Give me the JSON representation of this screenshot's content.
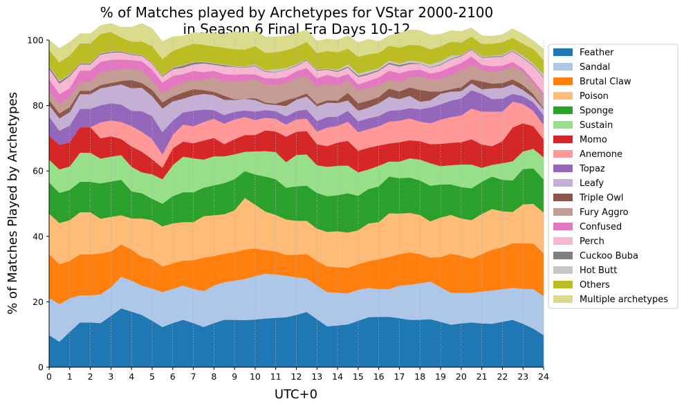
{
  "chart_data": {
    "type": "area",
    "stacked": true,
    "title_line1": "% of Matches played by Archetypes for VStar 2000-2100",
    "title_line2": "in Season 6 Final Era Days 10-12",
    "xlabel": "UTC+0",
    "ylabel": "% of Matches Played by Archetypes",
    "xlim": [
      0,
      24
    ],
    "ylim": [
      0,
      100
    ],
    "x_ticks": [
      "0",
      "1",
      "2",
      "3",
      "4",
      "5",
      "6",
      "7",
      "8",
      "9",
      "10",
      "11",
      "12",
      "13",
      "14",
      "15",
      "16",
      "17",
      "18",
      "19",
      "20",
      "21",
      "22",
      "23",
      "24"
    ],
    "y_ticks": [
      "0",
      "20",
      "40",
      "60",
      "80",
      "100"
    ],
    "grid": "vertical dashed",
    "legend_position": "upper right, outside plot",
    "x": [
      0,
      0.5,
      1,
      1.5,
      2,
      2.5,
      3,
      3.5,
      4,
      4.5,
      5,
      5.5,
      6,
      6.5,
      7,
      7.5,
      8,
      8.5,
      9,
      9.5,
      10,
      10.5,
      11,
      11.5,
      12,
      12.5,
      13,
      13.5,
      14,
      14.5,
      15,
      15.5,
      16,
      16.5,
      17,
      17.5,
      18,
      18.5,
      19,
      19.5,
      20,
      20.5,
      21,
      21.5,
      22,
      22.5,
      23,
      23.5,
      24
    ],
    "series": [
      {
        "name": "Feather",
        "color": "#1f77b4",
        "values": [
          9.8,
          7.8,
          10.8,
          13.7,
          13.7,
          13.5,
          15.7,
          18,
          17,
          16,
          14.2,
          12.3,
          13.5,
          14.5,
          13.5,
          12.3,
          13.5,
          14.5,
          14.5,
          14.4,
          14.6,
          14.9,
          15.1,
          15.3,
          16,
          16.9,
          14.7,
          12.5,
          12.8,
          13.1,
          14.2,
          15.3,
          15.4,
          15.4,
          15,
          14.5,
          14.5,
          14.7,
          13.9,
          13,
          13.4,
          13.7,
          13.4,
          13.3,
          13.9,
          14.5,
          13.3,
          11.8,
          9.8
        ]
      },
      {
        "name": "Sandal",
        "color": "#aec7e8",
        "values": [
          11.5,
          11.5,
          10.3,
          8.3,
          8.3,
          8.8,
          8.8,
          9.7,
          9.5,
          9,
          9.9,
          10.7,
          10.5,
          10.5,
          10.5,
          11,
          11.5,
          11.5,
          12,
          12.6,
          13.3,
          13.7,
          13.3,
          12.7,
          11.5,
          10.3,
          10.3,
          10.5,
          10,
          9.5,
          9.5,
          9,
          8.5,
          8.5,
          10,
          10.7,
          11.2,
          11.5,
          10.6,
          9.8,
          9.3,
          9.1,
          9.8,
          10.2,
          10,
          9.8,
          10.7,
          12.1,
          12
        ]
      },
      {
        "name": "Brutal Claw",
        "color": "#ff7f0e",
        "values": [
          13.2,
          12.2,
          11.4,
          12.5,
          12.5,
          12.5,
          10.9,
          9.8,
          9.5,
          8.7,
          8.9,
          7.8,
          7.8,
          7.6,
          8.7,
          10.2,
          9,
          8.7,
          8.6,
          9,
          8.4,
          7.2,
          7,
          6.3,
          6.9,
          7.4,
          7.5,
          7.8,
          7.8,
          7.8,
          7.8,
          8.1,
          9.1,
          9.8,
          9.6,
          9.9,
          8.9,
          7.3,
          9.2,
          11.9,
          11.4,
          10.4,
          11.4,
          12.4,
          12.8,
          13.6,
          13.9,
          13.9,
          13.1
        ]
      },
      {
        "name": "Poison",
        "color": "#ffbb78",
        "values": [
          12.5,
          12.6,
          12.5,
          12.9,
          12.9,
          10.6,
          10.6,
          9,
          9.5,
          11.8,
          12,
          12.3,
          12.2,
          11.8,
          11.7,
          12.7,
          12.5,
          12.1,
          12.9,
          15.8,
          13.4,
          11.8,
          11.2,
          10.9,
          10.4,
          10.2,
          9.9,
          10.6,
          11,
          10.8,
          10.4,
          11.6,
          11.4,
          13.4,
          12.4,
          12.1,
          12,
          11.1,
          12.1,
          11.9,
          11.4,
          11.8,
          12.3,
          12.5,
          11,
          9.6,
          11.9,
          12.2,
          12.4
        ]
      },
      {
        "name": "Sponge",
        "color": "#2ca02c",
        "values": [
          9.5,
          9.2,
          9.2,
          9.3,
          9.3,
          10.8,
          10.8,
          10.8,
          8.3,
          7.7,
          6.5,
          6.9,
          8.3,
          9.1,
          9.1,
          8.7,
          9.1,
          9.5,
          9.5,
          8.2,
          9.2,
          10.7,
          10.9,
          9.7,
          10.5,
          10.7,
          10.9,
          10.9,
          11,
          12,
          10.5,
          10.5,
          10.9,
          11.2,
          10.8,
          10.8,
          10.5,
          10.9,
          10.1,
          9.3,
          9.6,
          9.7,
          9.8,
          9.9,
          9.6,
          9.6,
          10.8,
          10.8,
          10.1
        ]
      },
      {
        "name": "Sustain",
        "color": "#98df8a",
        "values": [
          7,
          7.2,
          7.2,
          8.9,
          8.9,
          7.6,
          7.6,
          7.6,
          7.5,
          6.4,
          7.5,
          7.5,
          9.5,
          10.9,
          10.4,
          8.6,
          8.9,
          8.2,
          7.6,
          5.9,
          7.1,
          7.8,
          8.3,
          7.8,
          9.6,
          9.6,
          8.5,
          9,
          9,
          8.5,
          7.2,
          6,
          6.3,
          4.6,
          5.1,
          5.9,
          6.4,
          6.9,
          5.6,
          5.9,
          6.9,
          7.3,
          4.3,
          3.6,
          5.1,
          5.9,
          5.4,
          6,
          6.8
        ]
      },
      {
        "name": "Momo",
        "color": "#d62728",
        "values": [
          7.3,
          7.5,
          7.4,
          7.8,
          7.8,
          6.2,
          6.2,
          4.9,
          6.2,
          6.3,
          4.6,
          3.5,
          5.1,
          4.6,
          4.6,
          5.8,
          5.6,
          3.7,
          4.6,
          5.1,
          5,
          6.3,
          6.3,
          7.8,
          7.1,
          7.1,
          6.4,
          6.3,
          7.1,
          7.5,
          6.6,
          6.6,
          6.2,
          5.5,
          5.9,
          5.5,
          5.6,
          5.8,
          6.8,
          6.8,
          6.8,
          7.7,
          7.1,
          5.7,
          6.7,
          10.3,
          8.6,
          6.9,
          5.5
        ]
      },
      {
        "name": "Anemone",
        "color": "#ff9896",
        "values": [
          0,
          0,
          0,
          0,
          0,
          4.9,
          4.9,
          5.2,
          6.3,
          6.1,
          6.2,
          4.1,
          4.2,
          5.2,
          5.2,
          5.7,
          5.9,
          6.3,
          6.1,
          5.5,
          4.6,
          3.9,
          3.9,
          3.7,
          3.8,
          3.8,
          3.9,
          5.7,
          5.1,
          5.9,
          5.7,
          5.7,
          5.9,
          6.7,
          6.6,
          6.7,
          6,
          6.4,
          7.4,
          7.9,
          8.2,
          9.4,
          10.1,
          10.6,
          9.1,
          7.9,
          5.9,
          4.7,
          4.4
        ]
      },
      {
        "name": "Topaz",
        "color": "#9467bd",
        "values": [
          5.8,
          4.3,
          5.1,
          5.6,
          5.6,
          5.2,
          5.2,
          5.3,
          4.6,
          6.3,
          7,
          6.8,
          4.3,
          3.7,
          4.7,
          3.8,
          2.6,
          2.6,
          2.3,
          2,
          2.6,
          2.3,
          2.3,
          2.5,
          2.5,
          2.8,
          3.2,
          3.2,
          2.8,
          3.3,
          3.3,
          3.3,
          3.1,
          3.3,
          3.2,
          3.1,
          3.8,
          4.8,
          4.7,
          5,
          5.2,
          5.6,
          5.4,
          3.8,
          3.9,
          2.4,
          2.4,
          2.6,
          2.9
        ]
      },
      {
        "name": "Leafy",
        "color": "#c5b0d5",
        "values": [
          3.6,
          3.8,
          4.1,
          4.5,
          4.5,
          5.2,
          5.2,
          6.2,
          6.9,
          7.2,
          6.1,
          7.2,
          5.9,
          4.2,
          4.7,
          4.8,
          4.6,
          4.7,
          3.6,
          3.6,
          3.5,
          1.9,
          1.9,
          3.2,
          3.5,
          4,
          4.5,
          4.4,
          4.2,
          3.2,
          3.2,
          3.3,
          3.9,
          4.3,
          3.4,
          3.8,
          2.3,
          2.2,
          3.2,
          2.8,
          2.2,
          2.1,
          1.4,
          3.3,
          3.3,
          2.9,
          1.9,
          1.5,
          1.9
        ]
      },
      {
        "name": "Triple Owl",
        "color": "#8c564b",
        "values": [
          1.5,
          1.5,
          1.5,
          1,
          1,
          1,
          1,
          1,
          2.5,
          1.4,
          1.9,
          1.9,
          1.5,
          1.9,
          1.9,
          1.1,
          1,
          1.2,
          0.2,
          0,
          0.6,
          0.4,
          0.4,
          1.7,
          0.7,
          0.9,
          0.7,
          0.7,
          0.7,
          2.3,
          2.3,
          2.1,
          1.9,
          2.5,
          2.3,
          2.5,
          3.6,
          2.7,
          0.7,
          0.7,
          1.2,
          1.2,
          2.4,
          1.4,
          1.5,
          1.5,
          1.5,
          1,
          0.3
        ]
      },
      {
        "name": "Fury Aggro",
        "color": "#c49c94",
        "values": [
          2.7,
          2.9,
          3.1,
          2.8,
          2.8,
          3.8,
          3.8,
          3.9,
          3.6,
          4,
          3,
          2.8,
          2.9,
          3,
          3,
          3.1,
          4.5,
          4.5,
          5.5,
          5.5,
          5.9,
          5.7,
          5.7,
          5.3,
          6,
          5.4,
          5.2,
          5.3,
          4.5,
          4,
          4,
          3.8,
          3.8,
          2.8,
          2.9,
          3.2,
          4.2,
          3.7,
          3.8,
          4.5,
          5.1,
          4.6,
          3.5,
          3.6,
          3.8,
          4.1,
          4.1,
          3.5,
          3.7
        ]
      },
      {
        "name": "Confused",
        "color": "#e377c2",
        "values": [
          3.7,
          3,
          2.7,
          3.4,
          3.4,
          3.3,
          3.3,
          2.7,
          2.5,
          2.7,
          3.2,
          3.2,
          3.4,
          2.6,
          2.6,
          2.4,
          1.9,
          2.1,
          2,
          2,
          1.3,
          1.8,
          2,
          1.8,
          2,
          2.4,
          2.6,
          2.5,
          2.5,
          1.8,
          1.8,
          2.2,
          2.2,
          2.7,
          2.7,
          2,
          2,
          1.8,
          2.3,
          2.3,
          2.3,
          2.4,
          1.6,
          1.7,
          1.5,
          1.2,
          0.9,
          0.8,
          0.9
        ]
      },
      {
        "name": "Perch",
        "color": "#f7b6d2",
        "values": [
          3.2,
          3.2,
          3.7,
          1.9,
          1.9,
          2.2,
          2.2,
          2.2,
          1.6,
          1.6,
          1.8,
          1.8,
          2,
          2,
          2,
          2.7,
          1.9,
          2.4,
          2.4,
          2,
          2.6,
          1.9,
          1.9,
          2.2,
          1.6,
          2.3,
          2.4,
          1.6,
          1.8,
          1.9,
          2.2,
          2,
          2,
          2,
          2,
          2,
          1.8,
          1.8,
          2,
          2.3,
          2.1,
          2.1,
          2.1,
          2.8,
          2.8,
          3.3,
          3.2,
          4.3,
          4.7
        ]
      },
      {
        "name": "Cuckoo Buba",
        "color": "#7f7f7f",
        "values": [
          0.6,
          0.6,
          0.4,
          0.3,
          0.3,
          0.3,
          0.3,
          0.3,
          0.2,
          0.2,
          0.2,
          0.2,
          0.4,
          0.6,
          0.6,
          0.4,
          0.3,
          0.4,
          0.1,
          0.1,
          0.2,
          0.2,
          0.1,
          0.1,
          0.2,
          0.2,
          0.2,
          0.2,
          0.3,
          0.3,
          0.4,
          0.4,
          0.3,
          0.4,
          0.5,
          0.4,
          0.1,
          0.1,
          0.2,
          0.2,
          0.2,
          0.2,
          0.2,
          0.2,
          0.2,
          0.2,
          0.2,
          0.2,
          0.2
        ]
      },
      {
        "name": "Hot Butt",
        "color": "#c7c7c7",
        "values": [
          0.4,
          0.4,
          0.2,
          0.2,
          0.2,
          0.2,
          0.2,
          0.2,
          0.2,
          0.2,
          0.2,
          0.2,
          0.2,
          0.2,
          0.2,
          0.2,
          0.2,
          0.2,
          0.2,
          0.2,
          0.4,
          0.4,
          0.8,
          0.5,
          0.4,
          0.2,
          0.2,
          0.2,
          0.4,
          0.7,
          0.7,
          0.7,
          0.6,
          0.7,
          0.5,
          0.7,
          0.6,
          0.9,
          1,
          1,
          0.2,
          0.2,
          0.3,
          0.3,
          0.4,
          0.4,
          0.6,
          0.6,
          0.8
        ]
      },
      {
        "name": "Others",
        "color": "#bcbd22",
        "values": [
          4.7,
          5.5,
          5.7,
          5.9,
          5.9,
          5.8,
          5.8,
          4,
          3.6,
          4,
          5,
          5,
          5,
          5.5,
          5.5,
          5.1,
          5.1,
          5.1,
          5.1,
          5.2,
          5.5,
          5.2,
          5.2,
          5.4,
          5.2,
          5.3,
          4.9,
          5.3,
          5.3,
          4.8,
          5.1,
          5.1,
          4.6,
          4.5,
          4.8,
          4.8,
          4.9,
          4.6,
          4.5,
          4.2,
          3.8,
          3.6,
          3.7,
          3.6,
          3.8,
          3.5,
          3.6,
          4.4,
          4.4
        ]
      },
      {
        "name": "Multiple archetypes",
        "color": "#dbdb8d",
        "values": [
          3,
          4.3,
          4.1,
          3,
          3,
          2.6,
          2.6,
          3.2,
          4.5,
          5.5,
          5.4,
          5.4,
          4.4,
          3.4,
          3.4,
          3.6,
          4,
          4.1,
          5.4,
          5.1,
          4.6,
          4.9,
          4.7,
          4.4,
          4.2,
          3.6,
          3.7,
          3.7,
          3.8,
          4,
          4.4,
          4.6,
          3.5,
          3.1,
          4.4,
          4.6,
          4.6,
          4.4,
          3.7,
          3.4,
          3.4,
          2.7,
          2.6,
          2.3,
          2.3,
          2.8,
          3,
          2.6,
          3.4
        ]
      }
    ]
  }
}
